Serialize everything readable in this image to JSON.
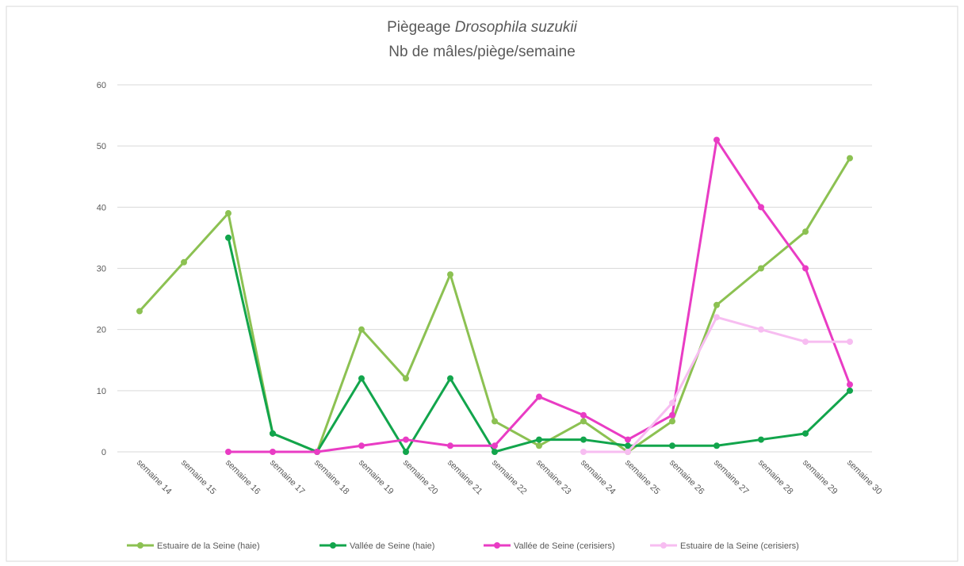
{
  "chart_data": {
    "type": "line",
    "title": "Piègeage",
    "title_species": "Drosophila suzukii",
    "subtitle": "Nb de mâles/piège/semaine",
    "categories": [
      "semaine 14",
      "semaine 15",
      "semaine 16",
      "semaine 17",
      "semaine 18",
      "semaine 19",
      "semaine 20",
      "semaine 21",
      "semaine 22",
      "semaine 23",
      "semaine 24",
      "semaine 25",
      "semaine 26",
      "semaine 27",
      "semaine 28",
      "semaine 29",
      "semaine 30"
    ],
    "series": [
      {
        "name": "Estuaire de la Seine (haie)",
        "color": "#8cc152",
        "values": [
          23,
          31,
          39,
          3,
          0,
          20,
          12,
          29,
          5,
          1,
          5,
          0,
          5,
          24,
          30,
          36,
          48
        ]
      },
      {
        "name": "Vallée de Seine (haie)",
        "color": "#12a54c",
        "values": [
          null,
          null,
          35,
          3,
          0,
          12,
          0,
          12,
          0,
          2,
          2,
          1,
          1,
          1,
          2,
          3,
          10
        ]
      },
      {
        "name": "Vallée de Seine (cerisiers)",
        "color": "#e93cc4",
        "values": [
          null,
          null,
          0,
          0,
          0,
          1,
          2,
          1,
          1,
          9,
          6,
          2,
          6,
          51,
          40,
          30,
          11
        ]
      },
      {
        "name": "Estuaire de la Seine (cerisiers)",
        "color": "#f7bdf1",
        "values": [
          null,
          null,
          null,
          null,
          null,
          null,
          null,
          null,
          null,
          null,
          0,
          0,
          8,
          22,
          20,
          18,
          18
        ]
      }
    ],
    "ylim": [
      0,
      60
    ],
    "yticks": [
      0,
      10,
      20,
      30,
      40,
      50,
      60
    ],
    "grid": true
  }
}
